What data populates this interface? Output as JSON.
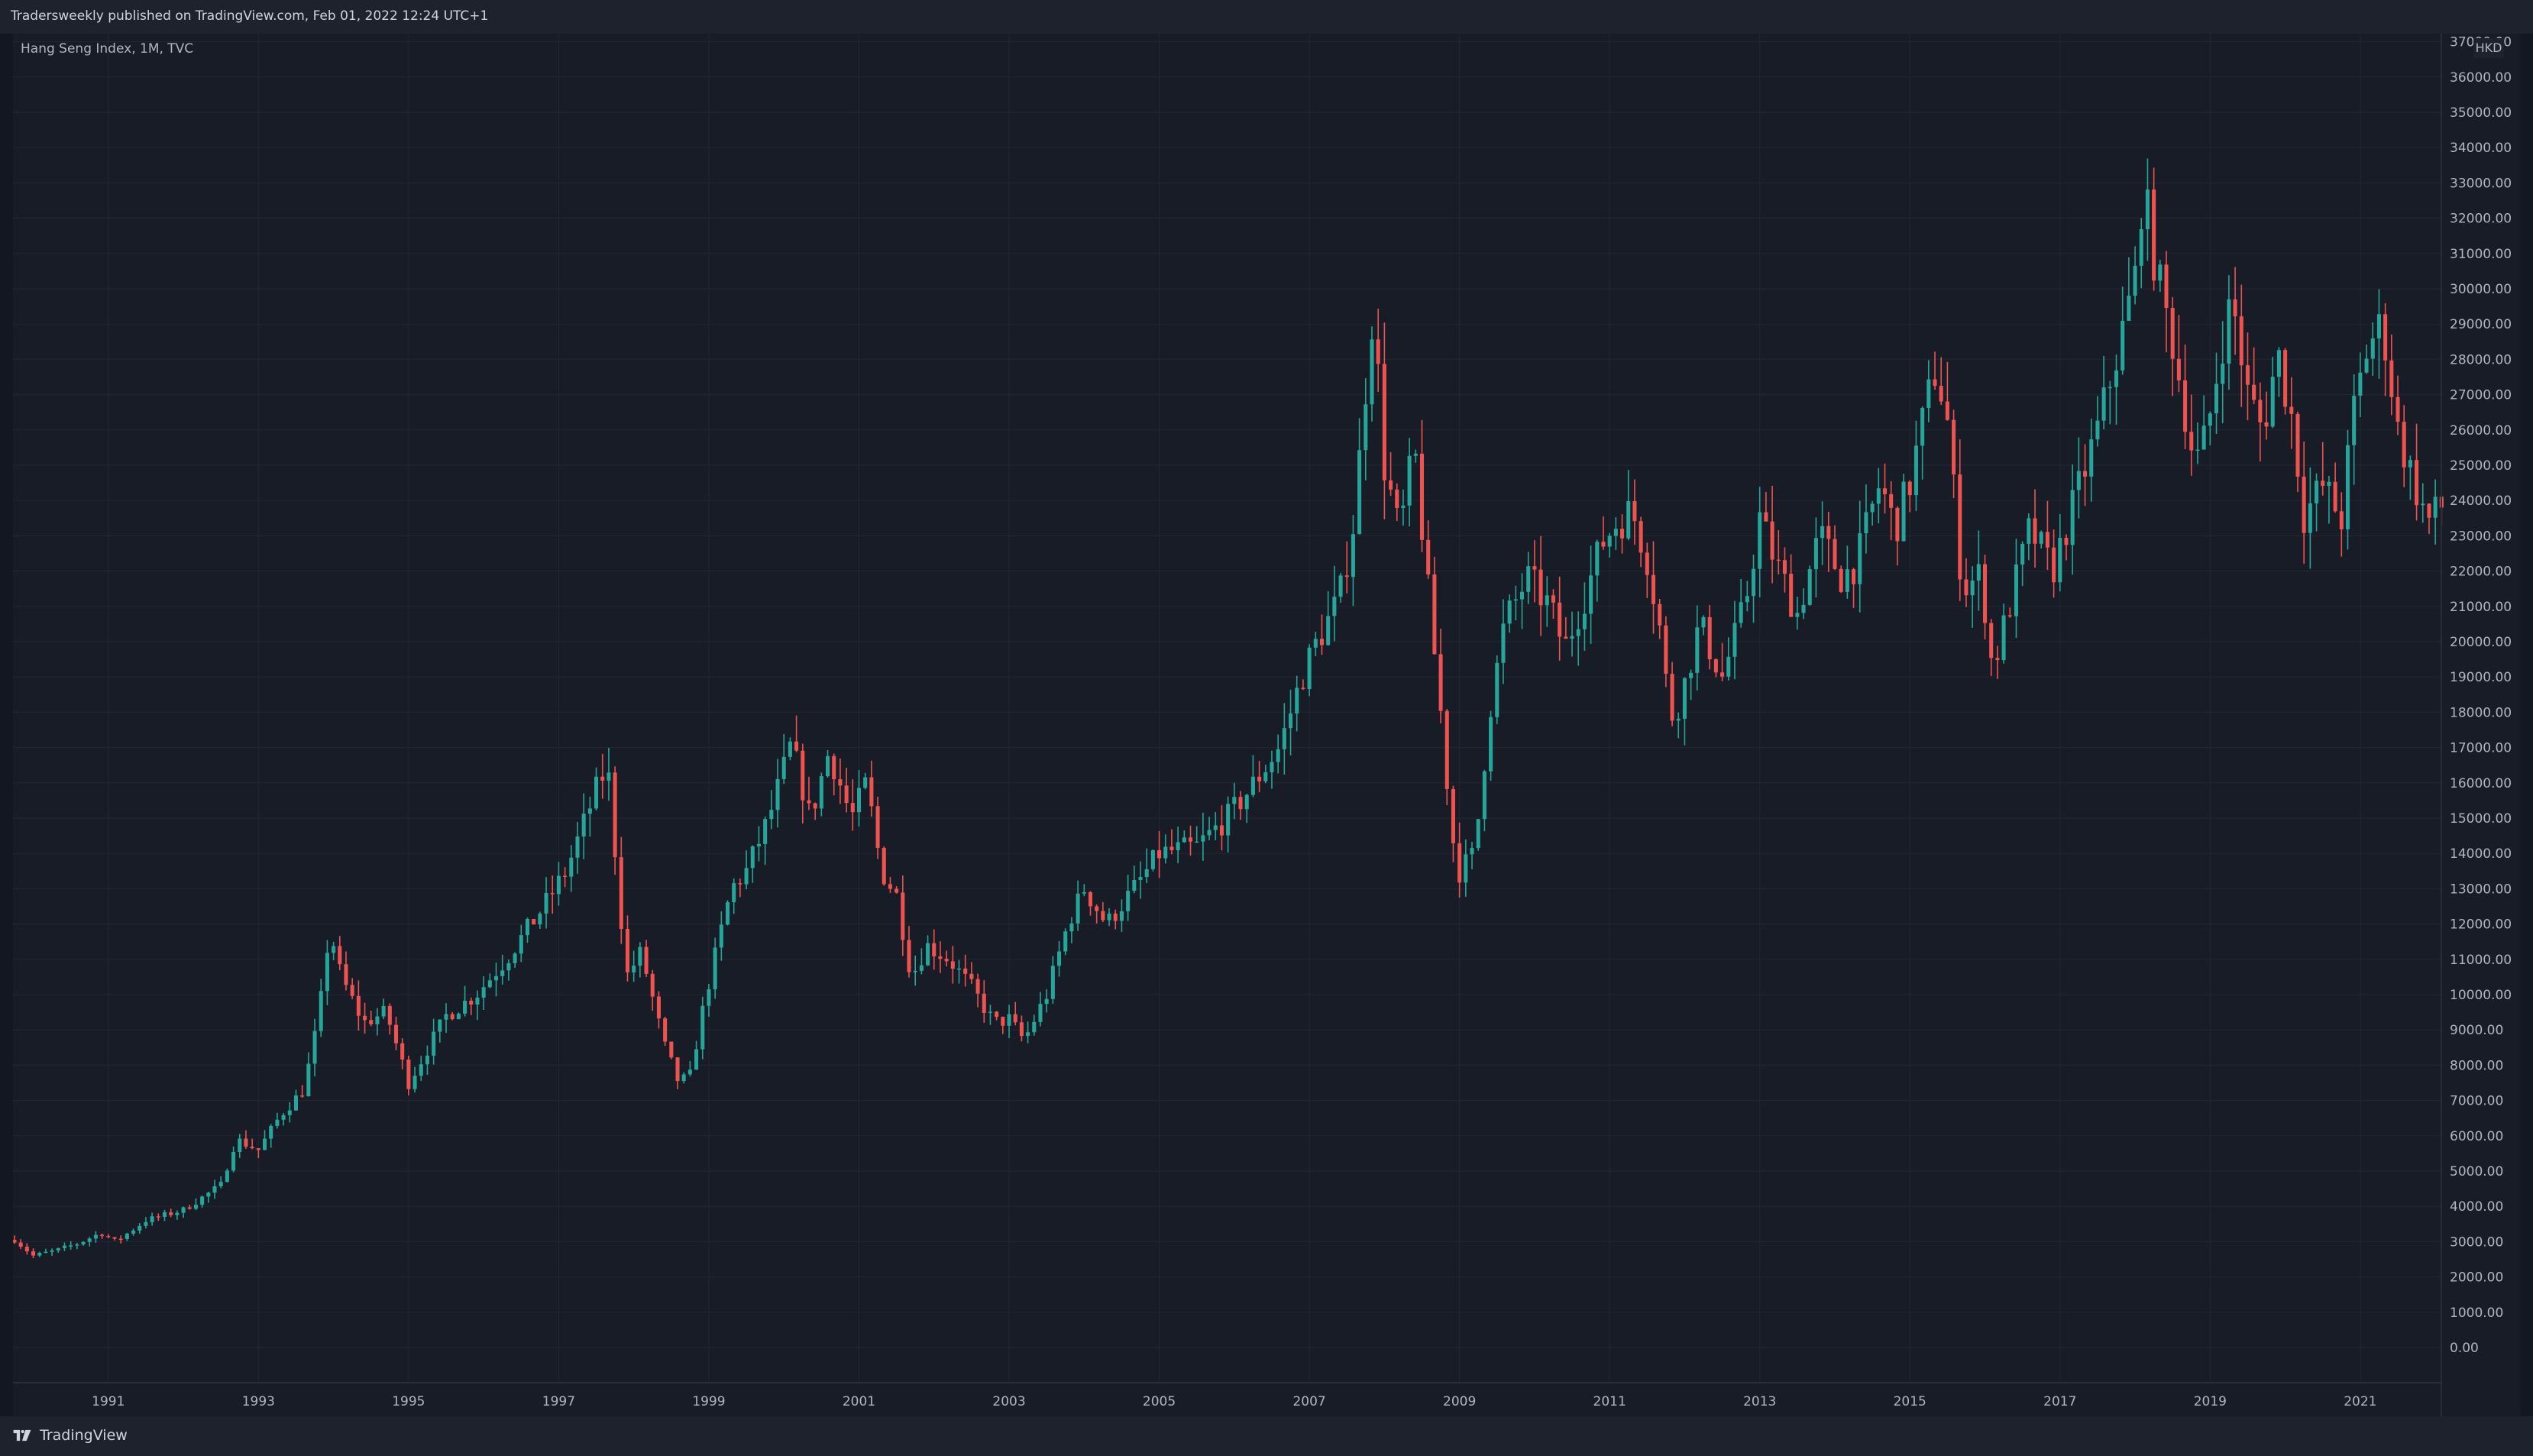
{
  "header": {
    "published_by": "Tradersweekly published on TradingView.com, Feb 01, 2022 12:24 UTC+1"
  },
  "legend": {
    "symbol_info": "Hang Seng Index, 1M, TVC"
  },
  "price_axis": {
    "currency": "HKD"
  },
  "footer": {
    "brand": "TradingView"
  },
  "colors": {
    "background": "#181c27",
    "grid": "#232734",
    "up": "#26a69a",
    "down": "#ef5350",
    "axis_text": "#b2b5be"
  },
  "chart_data": {
    "type": "candlestick",
    "title": "",
    "xlabel": "",
    "ylabel": "",
    "ylim": [
      0,
      37000
    ],
    "xlim": [
      1989.73,
      2022.08
    ],
    "grid": true,
    "y_ticks": [
      "0.00",
      "1000.00",
      "2000.00",
      "3000.00",
      "4000.00",
      "5000.00",
      "6000.00",
      "7000.00",
      "8000.00",
      "9000.00",
      "10000.00",
      "11000.00",
      "12000.00",
      "13000.00",
      "14000.00",
      "15000.00",
      "16000.00",
      "17000.00",
      "18000.00",
      "19000.00",
      "20000.00",
      "21000.00",
      "22000.00",
      "23000.00",
      "24000.00",
      "25000.00",
      "26000.00",
      "27000.00",
      "28000.00",
      "29000.00",
      "30000.00",
      "31000.00",
      "32000.00",
      "33000.00",
      "34000.00",
      "35000.00",
      "36000.00",
      "37000.00"
    ],
    "x_ticks": [
      "1991",
      "1993",
      "1995",
      "1997",
      "1999",
      "2001",
      "2003",
      "2005",
      "2007",
      "2009",
      "2011",
      "2013",
      "2015",
      "2017",
      "2019",
      "2021"
    ],
    "anchors": [
      [
        1989.75,
        3050
      ],
      [
        1990.0,
        2600
      ],
      [
        1990.3,
        2750
      ],
      [
        1990.6,
        2950
      ],
      [
        1990.9,
        3250
      ],
      [
        1991.1,
        3000
      ],
      [
        1991.5,
        3600
      ],
      [
        1992.0,
        3900
      ],
      [
        1992.5,
        4600
      ],
      [
        1992.7,
        5900
      ],
      [
        1993.0,
        5600
      ],
      [
        1993.3,
        6600
      ],
      [
        1993.6,
        7300
      ],
      [
        1993.8,
        9300
      ],
      [
        1993.95,
        11900
      ],
      [
        1994.1,
        10500
      ],
      [
        1994.4,
        9200
      ],
      [
        1994.7,
        9500
      ],
      [
        1995.0,
        7500
      ],
      [
        1995.5,
        9400
      ],
      [
        1995.9,
        10000
      ],
      [
        1996.3,
        11000
      ],
      [
        1996.8,
        12500
      ],
      [
        1997.1,
        13500
      ],
      [
        1997.5,
        15800
      ],
      [
        1997.65,
        16500
      ],
      [
        1997.9,
        10500
      ],
      [
        1998.1,
        11200
      ],
      [
        1998.4,
        8600
      ],
      [
        1998.6,
        7500
      ],
      [
        1998.75,
        7700
      ],
      [
        1998.95,
        9900
      ],
      [
        1999.3,
        13000
      ],
      [
        1999.5,
        13500
      ],
      [
        1999.8,
        15000
      ],
      [
        2000.1,
        17100
      ],
      [
        2000.35,
        15000
      ],
      [
        2000.6,
        16900
      ],
      [
        2000.9,
        15000
      ],
      [
        2001.1,
        16000
      ],
      [
        2001.3,
        13500
      ],
      [
        2001.5,
        12800
      ],
      [
        2001.7,
        10500
      ],
      [
        2001.9,
        11400
      ],
      [
        2002.2,
        11000
      ],
      [
        2002.5,
        10200
      ],
      [
        2002.8,
        9200
      ],
      [
        2003.0,
        9300
      ],
      [
        2003.2,
        8700
      ],
      [
        2003.5,
        10000
      ],
      [
        2003.8,
        12100
      ],
      [
        2004.0,
        13000
      ],
      [
        2004.3,
        12000
      ],
      [
        2004.7,
        13100
      ],
      [
        2005.0,
        14000
      ],
      [
        2005.5,
        14200
      ],
      [
        2005.9,
        15000
      ],
      [
        2006.2,
        15800
      ],
      [
        2006.6,
        17000
      ],
      [
        2006.9,
        19000
      ],
      [
        2007.1,
        20000
      ],
      [
        2007.4,
        21200
      ],
      [
        2007.6,
        23500
      ],
      [
        2007.8,
        28500
      ],
      [
        2007.85,
        29500
      ],
      [
        2008.0,
        25000
      ],
      [
        2008.2,
        23000
      ],
      [
        2008.4,
        25500
      ],
      [
        2008.6,
        21000
      ],
      [
        2008.75,
        18000
      ],
      [
        2008.9,
        14500
      ],
      [
        2009.0,
        13500
      ],
      [
        2009.2,
        14000
      ],
      [
        2009.4,
        18000
      ],
      [
        2009.6,
        20500
      ],
      [
        2009.9,
        21800
      ],
      [
        2010.2,
        21000
      ],
      [
        2010.4,
        19800
      ],
      [
        2010.7,
        21500
      ],
      [
        2010.9,
        22800
      ],
      [
        2011.1,
        23400
      ],
      [
        2011.3,
        23700
      ],
      [
        2011.5,
        22400
      ],
      [
        2011.7,
        20000
      ],
      [
        2011.8,
        17800
      ],
      [
        2011.95,
        18400
      ],
      [
        2012.2,
        20500
      ],
      [
        2012.5,
        19000
      ],
      [
        2012.8,
        21000
      ],
      [
        2013.0,
        23500
      ],
      [
        2013.2,
        22300
      ],
      [
        2013.5,
        20800
      ],
      [
        2013.8,
        23000
      ],
      [
        2014.1,
        21800
      ],
      [
        2014.3,
        22300
      ],
      [
        2014.6,
        24500
      ],
      [
        2014.8,
        23200
      ],
      [
        2015.0,
        24500
      ],
      [
        2015.2,
        26500
      ],
      [
        2015.35,
        27800
      ],
      [
        2015.5,
        26200
      ],
      [
        2015.7,
        21500
      ],
      [
        2015.95,
        21900
      ],
      [
        2016.1,
        19200
      ],
      [
        2016.3,
        20800
      ],
      [
        2016.6,
        23200
      ],
      [
        2016.9,
        22000
      ],
      [
        2017.2,
        24000
      ],
      [
        2017.5,
        26000
      ],
      [
        2017.8,
        28500
      ],
      [
        2018.0,
        30300
      ],
      [
        2018.1,
        32900
      ],
      [
        2018.3,
        30300
      ],
      [
        2018.5,
        28500
      ],
      [
        2018.8,
        25000
      ],
      [
        2018.95,
        25800
      ],
      [
        2019.2,
        29000
      ],
      [
        2019.3,
        29600
      ],
      [
        2019.5,
        27000
      ],
      [
        2019.7,
        26000
      ],
      [
        2019.9,
        28200
      ],
      [
        2020.1,
        26200
      ],
      [
        2020.25,
        23600
      ],
      [
        2020.5,
        24400
      ],
      [
        2020.75,
        23500
      ],
      [
        2020.9,
        26400
      ],
      [
        2021.1,
        28400
      ],
      [
        2021.3,
        29000
      ],
      [
        2021.5,
        26000
      ],
      [
        2021.7,
        24600
      ],
      [
        2021.9,
        23400
      ],
      [
        2022.08,
        23800
      ]
    ]
  }
}
